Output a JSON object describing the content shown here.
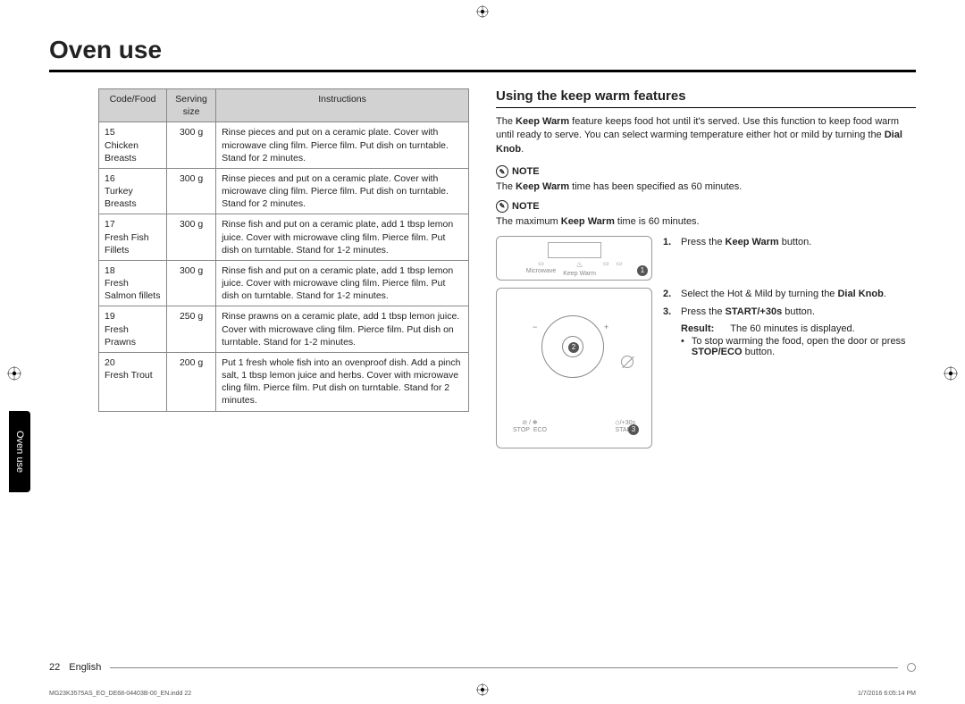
{
  "title": "Oven use",
  "side_tab": "Oven use",
  "table": {
    "headers": [
      "Code/Food",
      "Serving size",
      "Instructions"
    ],
    "rows": [
      {
        "code": "15",
        "food": "Chicken Breasts",
        "size": "300 g",
        "instr": "Rinse pieces and put on a ceramic plate. Cover with microwave cling film. Pierce film. Put dish on turntable. Stand for 2 minutes."
      },
      {
        "code": "16",
        "food": "Turkey Breasts",
        "size": "300 g",
        "instr": "Rinse pieces and put on a ceramic plate. Cover with microwave cling film. Pierce film. Put dish on turntable. Stand for 2 minutes."
      },
      {
        "code": "17",
        "food": "Fresh Fish Fillets",
        "size": "300 g",
        "instr": "Rinse fish and put on a ceramic plate, add 1 tbsp lemon juice. Cover with microwave cling film. Pierce film. Put dish on turntable. Stand for 1-2 minutes."
      },
      {
        "code": "18",
        "food": "Fresh Salmon fillets",
        "size": "300 g",
        "instr": "Rinse fish and put on a ceramic plate, add 1 tbsp lemon juice. Cover with microwave cling film. Pierce film. Put dish on turntable. Stand for 1-2 minutes."
      },
      {
        "code": "19",
        "food": "Fresh Prawns",
        "size": "250 g",
        "instr": "Rinse prawns on a ceramic plate, add 1 tbsp lemon juice. Cover with microwave cling film. Pierce film. Put dish on turntable. Stand for 1-2 minutes."
      },
      {
        "code": "20",
        "food": "Fresh Trout",
        "size": "200 g",
        "instr": "Put 1 fresh whole fish into an ovenproof dish. Add a pinch salt, 1 tbsp lemon juice and herbs. Cover with microwave cling film. Pierce film. Put dish on turntable. Stand for 2 minutes."
      }
    ]
  },
  "right": {
    "heading": "Using the keep warm features",
    "intro_pre": "The ",
    "intro_bold1": "Keep Warm",
    "intro_mid": " feature keeps food hot until it's served. Use this function to keep food warm until ready to serve. You can select warming temperature either hot or mild by turning the ",
    "intro_bold2": "Dial Knob",
    "intro_post": ".",
    "note_label": "NOTE",
    "note1_pre": "The ",
    "note1_bold": "Keep Warm",
    "note1_post": " time has been specified as 60 minutes.",
    "note2_pre": "The maximum ",
    "note2_bold": "Keep Warm",
    "note2_post": " time is 60 minutes.",
    "diagram_top": {
      "microwave": "Microwave",
      "keepwarm": "Keep Warm"
    },
    "diagram_bot": {
      "stop": "STOP",
      "eco": "ECO",
      "start": "START",
      "plus30": "/+30s"
    },
    "steps": {
      "s1_pre": "Press the ",
      "s1_bold": "Keep Warm",
      "s1_post": " button.",
      "s2_pre": "Select the Hot & Mild by turning the ",
      "s2_bold": "Dial Knob",
      "s2_post": ".",
      "s3_pre": "Press the ",
      "s3_bold": "START/+30s",
      "s3_post": " button.",
      "result_lbl": "Result:",
      "result_txt": "The 60 minutes is displayed.",
      "bullet_pre": "To stop warming the food, open the door or press ",
      "bullet_bold": "STOP/ECO",
      "bullet_post": " button."
    }
  },
  "footer": {
    "page": "22",
    "lang": "English"
  },
  "print": {
    "left": "MG23K3575AS_EO_DE68-04403B-00_EN.indd   22",
    "right": "1/7/2016   6:05:14 PM"
  }
}
